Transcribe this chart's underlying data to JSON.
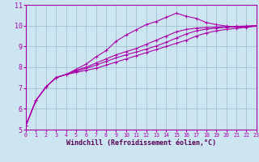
{
  "title": "",
  "xlabel": "Windchill (Refroidissement éolien,°C)",
  "ylabel": "",
  "bg_color": "#cce5f0",
  "line_color": "#aa00aa",
  "grid_color": "#99bbcc",
  "spine_color": "#aa00aa",
  "tick_color": "#aa00aa",
  "label_color": "#550055",
  "ylim": [
    5,
    11
  ],
  "xlim": [
    0,
    23
  ],
  "yticks": [
    5,
    6,
    7,
    8,
    9,
    10,
    11
  ],
  "xticks": [
    0,
    1,
    2,
    3,
    4,
    5,
    6,
    7,
    8,
    9,
    10,
    11,
    12,
    13,
    14,
    15,
    16,
    17,
    18,
    19,
    20,
    21,
    22,
    23
  ],
  "curves": [
    [
      5.2,
      6.4,
      7.05,
      7.5,
      7.65,
      7.75,
      7.85,
      7.95,
      8.1,
      8.25,
      8.4,
      8.55,
      8.7,
      8.85,
      9.0,
      9.15,
      9.3,
      9.5,
      9.65,
      9.75,
      9.82,
      9.87,
      9.92,
      9.97
    ],
    [
      5.2,
      6.4,
      7.05,
      7.5,
      7.65,
      7.9,
      8.15,
      8.5,
      8.8,
      9.25,
      9.55,
      9.8,
      10.05,
      10.2,
      10.4,
      10.6,
      10.45,
      10.35,
      10.15,
      10.05,
      9.98,
      9.94,
      9.94,
      10.0
    ],
    [
      5.2,
      6.4,
      7.05,
      7.5,
      7.65,
      7.85,
      8.0,
      8.2,
      8.4,
      8.6,
      8.75,
      8.9,
      9.1,
      9.3,
      9.5,
      9.7,
      9.82,
      9.88,
      9.91,
      9.93,
      9.95,
      9.97,
      9.98,
      10.0
    ],
    [
      5.2,
      6.4,
      7.05,
      7.5,
      7.65,
      7.8,
      7.95,
      8.1,
      8.28,
      8.45,
      8.6,
      8.73,
      8.87,
      9.02,
      9.2,
      9.4,
      9.6,
      9.75,
      9.83,
      9.88,
      9.92,
      9.95,
      9.97,
      10.0
    ]
  ],
  "marker": "+",
  "marker_size": 3.5,
  "linewidth": 0.8,
  "xlabel_fontsize": 6.0,
  "tick_fontsize_x": 4.8,
  "tick_fontsize_y": 6.0
}
